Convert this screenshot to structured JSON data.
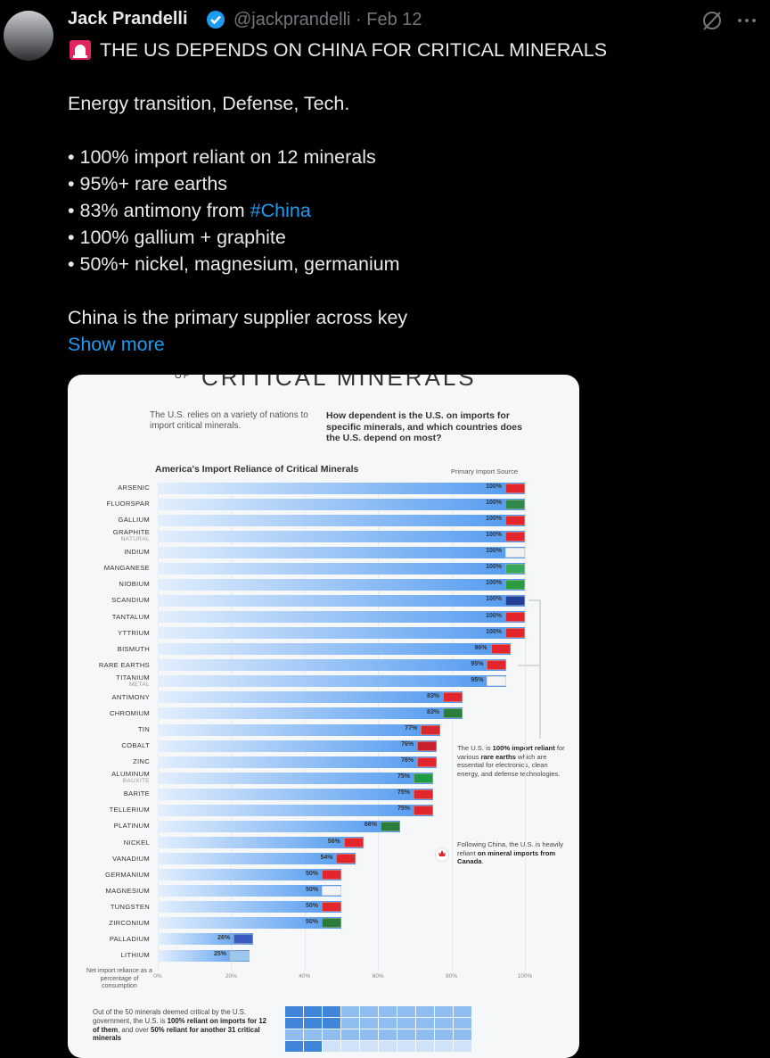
{
  "tweet": {
    "author": "Jack Prandelli",
    "meta": "@jackprandelli · Feb 12",
    "headline": "THE US DEPENDS ON CHINA FOR CRITICAL MINERALS",
    "intro": "Energy transition, Defense, Tech.",
    "bullets": [
      "• 100% import reliant on 12 minerals",
      "• 95%+ rare earths",
      "• 83% antimony from ",
      "• 100% gallium + graphite",
      "• 50%+ nickel, magnesium, germanium"
    ],
    "hashtag": "#China",
    "closing": "China is the primary supplier across key",
    "show_more": "Show more"
  },
  "image": {
    "heading_small": "OF",
    "heading": "CRITICAL MINERALS",
    "intro_left": "The U.S. relies on a variety of nations to import critical minerals.",
    "intro_right": "How dependent is the U.S. on imports for specific minerals, and which countries does the U.S. depend on most?",
    "chart": {
      "type": "bar",
      "title": "America's Import Reliance of Critical Minerals",
      "source_label": "Primary Import Source",
      "categories": [
        "ARSENIC",
        "FLUORSPAR",
        "GALLIUM",
        "GRAPHITE",
        "INDIUM",
        "MANGANESE",
        "NIOBIUM",
        "SCANDIUM",
        "TANTALUM",
        "YTTRIUM",
        "BISMUTH",
        "RARE EARTHS",
        "TITANIUM",
        "ANTIMONY",
        "CHROMIUM",
        "TIN",
        "COBALT",
        "ZINC",
        "ALUMINUM",
        "BARITE",
        "TELLERIUM",
        "PLATINUM",
        "NICKEL",
        "VANADIUM",
        "GERMANIUM",
        "MAGNESIUM",
        "TUNGSTEN",
        "ZIRCONIUM",
        "PALLADIUM",
        "LITHIUM"
      ],
      "sublabels": [
        null,
        null,
        null,
        "NATURAL",
        null,
        null,
        null,
        null,
        null,
        null,
        null,
        null,
        "METAL",
        null,
        null,
        null,
        null,
        null,
        "BAUXITE",
        null,
        null,
        null,
        null,
        null,
        null,
        null,
        null,
        null,
        null,
        null
      ],
      "values": [
        100,
        100,
        100,
        100,
        100,
        100,
        100,
        100,
        100,
        100,
        96,
        95,
        95,
        83,
        83,
        77,
        76,
        76,
        75,
        75,
        75,
        66,
        56,
        54,
        50,
        50,
        50,
        50,
        26,
        25
      ],
      "value_labels": [
        "100%",
        "100%",
        "100%",
        "100%",
        "100%",
        "100%",
        "100%",
        "100%",
        "100%",
        "100%",
        "96%",
        "95%",
        "95%",
        "83%",
        "83%",
        "77%",
        "76%",
        "76%",
        "75%",
        "75%",
        "75%",
        "66%",
        "56%",
        "54%",
        "50%",
        "50%",
        "50%",
        "50%",
        "26%",
        "25%"
      ],
      "colors": [
        "#e3262b",
        "#2f8a4a",
        "#e3262b",
        "#e3262b",
        "#f2f2f2",
        "#3aa85a",
        "#2c9a3e",
        "#223f9a",
        "#e3262b",
        "#e3262b",
        "#e3262b",
        "#e3262b",
        "#f4f4f4",
        "#e3262b",
        "#2b7d3c",
        "#d8262f",
        "#c8202e",
        "#e3262b",
        "#1f9a46",
        "#e3262b",
        "#e3262b",
        "#2b7d3c",
        "#e3262b",
        "#e3262b",
        "#e3262b",
        "#f2f4fa",
        "#e3262b",
        "#2b7d3c",
        "#3a5cc0",
        "#9cc8ee"
      ],
      "color": "#4f98ef",
      "xlim": [
        0,
        100
      ],
      "xticks": [
        {
          "value": 0,
          "label": "0%"
        },
        {
          "value": 20,
          "label": "20%"
        },
        {
          "value": 40,
          "label": "40%"
        },
        {
          "value": 60,
          "label": "60%"
        },
        {
          "value": 80,
          "label": "80%"
        },
        {
          "value": 100,
          "label": "100%"
        }
      ],
      "xlabel": "Net import reliance as a percentage of consumption"
    },
    "annotations": [
      {
        "parts": [
          "The U.S. is ",
          "100% import reliant",
          " for various ",
          "rare earths",
          " which are essential for electronics, clean energy, and defense technologies."
        ]
      },
      {
        "parts": [
          "Following China, the U.S. is heavily reliant ",
          "on mineral imports from Canada",
          "."
        ]
      }
    ],
    "footer": {
      "parts": [
        "Out of the 50 minerals deemed critical by the U.S. government, the U.S. is ",
        "100% reliant on imports for 12 of them",
        ", and over ",
        "50% reliant for another 31 critical minerals"
      ]
    }
  }
}
